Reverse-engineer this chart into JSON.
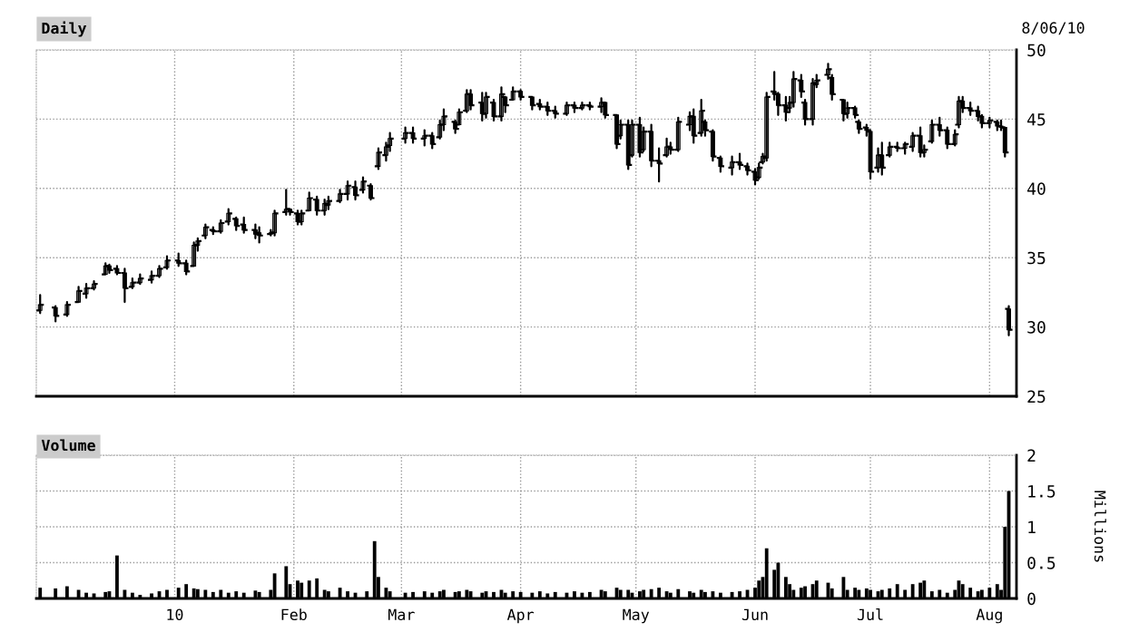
{
  "chart_data": [
    {
      "type": "candlestick",
      "title": "Daily",
      "annotations": [
        "8/06/10"
      ],
      "color": "#000000",
      "x": [
        "2009-11-27",
        "2009-12-01",
        "2009-12-04",
        "2009-12-07",
        "2009-12-09",
        "2009-12-11",
        "2009-12-14",
        "2009-12-15",
        "2009-12-17",
        "2009-12-19",
        "2009-12-21",
        "2009-12-23",
        "2009-12-26",
        "2009-12-28",
        "2009-12-30",
        "2010-01-02",
        "2010-01-04",
        "2010-01-06",
        "2010-01-07",
        "2010-01-09",
        "2010-01-11",
        "2010-01-13",
        "2010-01-15",
        "2010-01-17",
        "2010-01-19",
        "2010-01-22",
        "2010-01-23",
        "2010-01-26",
        "2010-01-27",
        "2010-01-30",
        "2010-01-31",
        "2010-02-02",
        "2010-02-03",
        "2010-02-05",
        "2010-02-07",
        "2010-02-09",
        "2010-02-10",
        "2010-02-13",
        "2010-02-15",
        "2010-02-17",
        "2010-02-19",
        "2010-02-21",
        "2010-02-23",
        "2010-02-25",
        "2010-02-26",
        "2010-03-02",
        "2010-03-04",
        "2010-03-07",
        "2010-03-09",
        "2010-03-11",
        "2010-03-12",
        "2010-03-15",
        "2010-03-16",
        "2010-03-18",
        "2010-03-19",
        "2010-03-22",
        "2010-03-23",
        "2010-03-25",
        "2010-03-27",
        "2010-03-28",
        "2010-03-30",
        "2010-04-01",
        "2010-04-04",
        "2010-04-06",
        "2010-04-08",
        "2010-04-10",
        "2010-04-13",
        "2010-04-15",
        "2010-04-17",
        "2010-04-19",
        "2010-04-22",
        "2010-04-23",
        "2010-04-26",
        "2010-04-27",
        "2010-04-29",
        "2010-04-30",
        "2010-05-02",
        "2010-05-03",
        "2010-05-05",
        "2010-05-07",
        "2010-05-09",
        "2010-05-10",
        "2010-05-12",
        "2010-05-15",
        "2010-05-16",
        "2010-05-18",
        "2010-05-19",
        "2010-05-21",
        "2010-05-23",
        "2010-05-26",
        "2010-05-28",
        "2010-05-30",
        "2010-06-01",
        "2010-06-02",
        "2010-06-03",
        "2010-06-04",
        "2010-06-06",
        "2010-06-07",
        "2010-06-09",
        "2010-06-10",
        "2010-06-11",
        "2010-06-13",
        "2010-06-14",
        "2010-06-16",
        "2010-06-17",
        "2010-06-20",
        "2010-06-21",
        "2010-06-24",
        "2010-06-25",
        "2010-06-27",
        "2010-06-28",
        "2010-06-30",
        "2010-07-01",
        "2010-07-03",
        "2010-07-04",
        "2010-07-06",
        "2010-07-08",
        "2010-07-10",
        "2010-07-12",
        "2010-07-14",
        "2010-07-15",
        "2010-07-17",
        "2010-07-19",
        "2010-07-21",
        "2010-07-23",
        "2010-07-24",
        "2010-07-25",
        "2010-07-27",
        "2010-07-29",
        "2010-07-30",
        "2010-08-01",
        "2010-08-03",
        "2010-08-04",
        "2010-08-05",
        "2010-08-06"
      ],
      "ohlc": [
        [
          31.2,
          32.3,
          31.0,
          31.6
        ],
        [
          31.4,
          31.5,
          30.4,
          30.8
        ],
        [
          30.9,
          31.8,
          30.8,
          31.6
        ],
        [
          31.8,
          32.9,
          31.8,
          32.6
        ],
        [
          32.4,
          33.1,
          32.1,
          32.8
        ],
        [
          32.8,
          33.3,
          32.7,
          33.1
        ],
        [
          33.8,
          34.6,
          33.8,
          34.4
        ],
        [
          34.4,
          34.5,
          33.9,
          34.1
        ],
        [
          34.2,
          34.4,
          33.8,
          33.9
        ],
        [
          33.9,
          34.2,
          31.8,
          32.8
        ],
        [
          32.9,
          33.5,
          32.8,
          33.2
        ],
        [
          33.2,
          33.8,
          33.1,
          33.5
        ],
        [
          33.4,
          34.0,
          33.2,
          33.7
        ],
        [
          33.7,
          34.4,
          33.6,
          34.2
        ],
        [
          34.3,
          35.1,
          34.2,
          34.8
        ],
        [
          34.8,
          35.3,
          34.4,
          34.6
        ],
        [
          34.6,
          34.8,
          33.8,
          34.0
        ],
        [
          34.4,
          36.1,
          34.4,
          35.9
        ],
        [
          35.9,
          36.4,
          35.5,
          36.2
        ],
        [
          36.6,
          37.4,
          36.4,
          37.2
        ],
        [
          37.0,
          37.2,
          36.7,
          36.9
        ],
        [
          36.9,
          37.7,
          36.8,
          37.5
        ],
        [
          37.6,
          38.5,
          37.4,
          38.2
        ],
        [
          37.8,
          37.9,
          37.0,
          37.3
        ],
        [
          37.4,
          37.9,
          36.8,
          37.0
        ],
        [
          37.0,
          37.4,
          36.4,
          36.7
        ],
        [
          36.8,
          37.2,
          36.1,
          36.6
        ],
        [
          36.7,
          37.0,
          36.6,
          36.8
        ],
        [
          36.8,
          38.4,
          36.6,
          38.2
        ],
        [
          38.3,
          39.9,
          38.1,
          38.5
        ],
        [
          38.5,
          38.5,
          38.1,
          38.3
        ],
        [
          38.2,
          38.4,
          37.4,
          37.6
        ],
        [
          37.6,
          38.4,
          37.4,
          38.2
        ],
        [
          38.4,
          39.7,
          38.4,
          39.3
        ],
        [
          39.2,
          39.4,
          38.1,
          38.4
        ],
        [
          38.4,
          39.2,
          38.1,
          38.9
        ],
        [
          38.8,
          39.4,
          38.5,
          39.1
        ],
        [
          39.1,
          39.9,
          39.0,
          39.6
        ],
        [
          39.6,
          40.5,
          39.2,
          40.2
        ],
        [
          40.1,
          40.5,
          39.2,
          39.5
        ],
        [
          39.9,
          40.8,
          39.7,
          40.5
        ],
        [
          40.2,
          40.3,
          39.2,
          39.3
        ],
        [
          41.6,
          42.9,
          41.4,
          42.6
        ],
        [
          42.4,
          43.3,
          42.0,
          43.0
        ],
        [
          43.1,
          44.0,
          42.7,
          43.6
        ],
        [
          43.6,
          44.4,
          43.3,
          44.0
        ],
        [
          44.0,
          44.4,
          43.3,
          43.6
        ],
        [
          43.6,
          44.2,
          43.1,
          43.8
        ],
        [
          43.8,
          44.0,
          42.9,
          43.2
        ],
        [
          43.7,
          44.9,
          43.6,
          44.6
        ],
        [
          44.6,
          45.7,
          44.2,
          45.2
        ],
        [
          44.8,
          44.9,
          44.0,
          44.3
        ],
        [
          44.6,
          45.7,
          44.6,
          45.5
        ],
        [
          45.6,
          47.1,
          45.5,
          46.8
        ],
        [
          46.8,
          47.1,
          45.7,
          46.0
        ],
        [
          46.2,
          46.9,
          44.9,
          45.4
        ],
        [
          45.4,
          46.9,
          45.1,
          46.6
        ],
        [
          46.2,
          46.4,
          44.9,
          45.2
        ],
        [
          45.2,
          47.3,
          44.9,
          46.8
        ],
        [
          46.6,
          46.6,
          45.5,
          46.0
        ],
        [
          46.4,
          47.3,
          46.4,
          47.0
        ],
        [
          47.0,
          47.1,
          46.4,
          46.6
        ],
        [
          46.6,
          46.6,
          45.7,
          46.0
        ],
        [
          46.1,
          46.4,
          45.7,
          45.9
        ],
        [
          45.9,
          46.2,
          45.3,
          45.6
        ],
        [
          45.6,
          45.9,
          45.1,
          45.4
        ],
        [
          45.4,
          46.2,
          45.3,
          46.0
        ],
        [
          46.0,
          46.2,
          45.5,
          45.8
        ],
        [
          45.8,
          46.2,
          45.7,
          46.0
        ],
        [
          46.0,
          46.2,
          45.7,
          45.9
        ],
        [
          45.9,
          46.5,
          45.5,
          46.2
        ],
        [
          46.2,
          46.2,
          45.1,
          45.3
        ],
        [
          45.3,
          45.3,
          42.9,
          43.2
        ],
        [
          43.8,
          44.9,
          43.6,
          44.6
        ],
        [
          44.6,
          44.9,
          41.4,
          41.7
        ],
        [
          42.4,
          44.9,
          42.3,
          44.6
        ],
        [
          44.6,
          45.1,
          42.3,
          42.6
        ],
        [
          42.8,
          44.4,
          42.7,
          44.1
        ],
        [
          44.1,
          44.6,
          41.6,
          42.0
        ],
        [
          42.0,
          42.9,
          40.5,
          41.8
        ],
        [
          42.4,
          43.6,
          42.3,
          43.0
        ],
        [
          43.0,
          43.3,
          42.5,
          42.8
        ],
        [
          42.8,
          45.1,
          42.7,
          44.8
        ],
        [
          44.6,
          45.5,
          44.2,
          45.2
        ],
        [
          45.2,
          45.7,
          43.3,
          43.8
        ],
        [
          44.0,
          46.4,
          43.8,
          45.6
        ],
        [
          44.8,
          44.9,
          43.8,
          44.2
        ],
        [
          44.1,
          44.2,
          42.0,
          42.3
        ],
        [
          42.2,
          42.3,
          41.2,
          41.6
        ],
        [
          41.5,
          42.3,
          41.0,
          41.9
        ],
        [
          41.9,
          42.5,
          41.4,
          41.7
        ],
        [
          41.6,
          41.8,
          41.0,
          41.3
        ],
        [
          41.2,
          41.4,
          40.3,
          40.6
        ],
        [
          40.8,
          41.8,
          40.7,
          41.5
        ],
        [
          41.9,
          42.5,
          41.8,
          42.3
        ],
        [
          42.2,
          46.9,
          42.0,
          46.6
        ],
        [
          47.0,
          48.4,
          46.4,
          46.8
        ],
        [
          46.8,
          46.9,
          45.3,
          46.0
        ],
        [
          46.0,
          46.6,
          44.9,
          45.5
        ],
        [
          45.8,
          46.6,
          45.5,
          46.2
        ],
        [
          46.2,
          48.4,
          45.9,
          47.9
        ],
        [
          47.8,
          48.2,
          46.6,
          47.0
        ],
        [
          46.2,
          46.4,
          44.6,
          45.0
        ],
        [
          45.0,
          47.9,
          44.6,
          47.6
        ],
        [
          47.5,
          48.2,
          47.3,
          47.8
        ],
        [
          48.2,
          49.0,
          47.9,
          48.6
        ],
        [
          48.0,
          48.2,
          46.4,
          46.8
        ],
        [
          46.4,
          46.4,
          44.9,
          45.4
        ],
        [
          45.4,
          46.2,
          45.1,
          45.8
        ],
        [
          45.8,
          45.9,
          45.1,
          45.3
        ],
        [
          44.8,
          44.9,
          44.0,
          44.3
        ],
        [
          44.4,
          44.6,
          43.8,
          44.2
        ],
        [
          44.1,
          44.2,
          40.7,
          41.2
        ],
        [
          41.5,
          42.9,
          41.2,
          42.4
        ],
        [
          42.4,
          43.3,
          41.0,
          41.5
        ],
        [
          42.4,
          43.3,
          42.3,
          43.0
        ],
        [
          43.0,
          43.3,
          42.7,
          42.9
        ],
        [
          42.9,
          43.3,
          42.5,
          43.2
        ],
        [
          43.0,
          44.0,
          42.7,
          43.8
        ],
        [
          43.8,
          44.4,
          42.3,
          42.6
        ],
        [
          42.6,
          43.1,
          42.3,
          42.8
        ],
        [
          43.4,
          44.9,
          43.3,
          44.6
        ],
        [
          44.6,
          45.1,
          43.8,
          44.2
        ],
        [
          44.2,
          44.4,
          42.9,
          43.2
        ],
        [
          43.2,
          44.2,
          43.1,
          43.9
        ],
        [
          44.6,
          46.6,
          44.4,
          46.3
        ],
        [
          46.3,
          46.6,
          45.5,
          45.8
        ],
        [
          45.8,
          46.2,
          45.3,
          45.6
        ],
        [
          45.6,
          45.9,
          44.9,
          45.2
        ],
        [
          45.2,
          45.3,
          44.4,
          44.7
        ],
        [
          44.7,
          45.1,
          44.4,
          44.9
        ],
        [
          44.8,
          44.9,
          44.2,
          44.5
        ],
        [
          44.5,
          44.9,
          44.2,
          44.4
        ],
        [
          44.4,
          44.4,
          42.3,
          42.6
        ],
        [
          31.3,
          31.5,
          29.4,
          29.8
        ]
      ],
      "xlim": [
        "2009-11-26",
        "2010-08-08"
      ],
      "xticks": [
        {
          "value": "2010-01-01",
          "label": null
        },
        {
          "value": "2010-02-01",
          "label": null
        },
        {
          "value": "2010-03-01",
          "label": null
        },
        {
          "value": "2010-04-01",
          "label": null
        },
        {
          "value": "2010-05-01",
          "label": null
        },
        {
          "value": "2010-06-01",
          "label": null
        },
        {
          "value": "2010-07-01",
          "label": null
        },
        {
          "value": "2010-08-01",
          "label": null
        }
      ],
      "ylim": [
        25,
        50
      ],
      "yticks": [
        25,
        30,
        35,
        40,
        45,
        50
      ],
      "tick_labels": "y",
      "grid": true
    },
    {
      "type": "bar",
      "title": "Volume",
      "ylabel": "Millions",
      "color": "#000000",
      "x": [
        "2009-11-27",
        "2009-12-01",
        "2009-12-04",
        "2009-12-07",
        "2009-12-09",
        "2009-12-11",
        "2009-12-14",
        "2009-12-15",
        "2009-12-17",
        "2009-12-19",
        "2009-12-21",
        "2009-12-23",
        "2009-12-26",
        "2009-12-28",
        "2009-12-30",
        "2010-01-02",
        "2010-01-04",
        "2010-01-06",
        "2010-01-07",
        "2010-01-09",
        "2010-01-11",
        "2010-01-13",
        "2010-01-15",
        "2010-01-17",
        "2010-01-19",
        "2010-01-22",
        "2010-01-23",
        "2010-01-26",
        "2010-01-27",
        "2010-01-30",
        "2010-01-31",
        "2010-02-02",
        "2010-02-03",
        "2010-02-05",
        "2010-02-07",
        "2010-02-09",
        "2010-02-10",
        "2010-02-13",
        "2010-02-15",
        "2010-02-17",
        "2010-02-20",
        "2010-02-22",
        "2010-02-23",
        "2010-02-25",
        "2010-02-26",
        "2010-03-02",
        "2010-03-04",
        "2010-03-07",
        "2010-03-09",
        "2010-03-11",
        "2010-03-12",
        "2010-03-15",
        "2010-03-16",
        "2010-03-18",
        "2010-03-19",
        "2010-03-22",
        "2010-03-23",
        "2010-03-25",
        "2010-03-27",
        "2010-03-28",
        "2010-03-30",
        "2010-04-01",
        "2010-04-04",
        "2010-04-06",
        "2010-04-08",
        "2010-04-10",
        "2010-04-13",
        "2010-04-15",
        "2010-04-17",
        "2010-04-19",
        "2010-04-22",
        "2010-04-23",
        "2010-04-26",
        "2010-04-27",
        "2010-04-29",
        "2010-04-30",
        "2010-05-02",
        "2010-05-03",
        "2010-05-05",
        "2010-05-07",
        "2010-05-09",
        "2010-05-10",
        "2010-05-12",
        "2010-05-15",
        "2010-05-16",
        "2010-05-18",
        "2010-05-19",
        "2010-05-21",
        "2010-05-23",
        "2010-05-26",
        "2010-05-28",
        "2010-05-30",
        "2010-06-01",
        "2010-06-02",
        "2010-06-03",
        "2010-06-04",
        "2010-06-06",
        "2010-06-07",
        "2010-06-09",
        "2010-06-10",
        "2010-06-11",
        "2010-06-13",
        "2010-06-14",
        "2010-06-16",
        "2010-06-17",
        "2010-06-20",
        "2010-06-21",
        "2010-06-24",
        "2010-06-25",
        "2010-06-27",
        "2010-06-28",
        "2010-06-30",
        "2010-07-01",
        "2010-07-03",
        "2010-07-04",
        "2010-07-06",
        "2010-07-08",
        "2010-07-10",
        "2010-07-12",
        "2010-07-14",
        "2010-07-15",
        "2010-07-17",
        "2010-07-19",
        "2010-07-21",
        "2010-07-23",
        "2010-07-24",
        "2010-07-25",
        "2010-07-27",
        "2010-07-29",
        "2010-07-30",
        "2010-08-01",
        "2010-08-03",
        "2010-08-04",
        "2010-08-05",
        "2010-08-06"
      ],
      "values": [
        0.15,
        0.14,
        0.17,
        0.12,
        0.08,
        0.07,
        0.09,
        0.1,
        0.6,
        0.12,
        0.08,
        0.05,
        0.07,
        0.1,
        0.12,
        0.15,
        0.2,
        0.14,
        0.13,
        0.12,
        0.09,
        0.12,
        0.08,
        0.1,
        0.08,
        0.11,
        0.09,
        0.12,
        0.35,
        0.45,
        0.2,
        0.25,
        0.22,
        0.25,
        0.28,
        0.12,
        0.1,
        0.15,
        0.1,
        0.08,
        0.1,
        0.8,
        0.3,
        0.15,
        0.1,
        0.08,
        0.09,
        0.1,
        0.08,
        0.1,
        0.12,
        0.09,
        0.1,
        0.12,
        0.1,
        0.08,
        0.1,
        0.09,
        0.12,
        0.08,
        0.1,
        0.09,
        0.08,
        0.1,
        0.07,
        0.09,
        0.08,
        0.1,
        0.08,
        0.09,
        0.12,
        0.1,
        0.15,
        0.12,
        0.12,
        0.08,
        0.1,
        0.12,
        0.13,
        0.15,
        0.1,
        0.08,
        0.13,
        0.1,
        0.08,
        0.12,
        0.09,
        0.1,
        0.08,
        0.09,
        0.1,
        0.12,
        0.15,
        0.25,
        0.3,
        0.7,
        0.4,
        0.5,
        0.3,
        0.2,
        0.12,
        0.15,
        0.17,
        0.2,
        0.25,
        0.22,
        0.14,
        0.3,
        0.12,
        0.15,
        0.12,
        0.14,
        0.12,
        0.1,
        0.12,
        0.14,
        0.2,
        0.12,
        0.2,
        0.22,
        0.25,
        0.1,
        0.12,
        0.08,
        0.12,
        0.25,
        0.2,
        0.15,
        0.1,
        0.12,
        0.15,
        0.2,
        0.12,
        1.0,
        1.5
      ],
      "xlim": [
        "2009-11-26",
        "2010-08-08"
      ],
      "xticks": [
        {
          "value": "2010-01-01",
          "label": "10"
        },
        {
          "value": "2010-02-01",
          "label": "Feb"
        },
        {
          "value": "2010-03-01",
          "label": "Mar"
        },
        {
          "value": "2010-04-01",
          "label": "Apr"
        },
        {
          "value": "2010-05-01",
          "label": "May"
        },
        {
          "value": "2010-06-01",
          "label": "Jun"
        },
        {
          "value": "2010-07-01",
          "label": "Jul"
        },
        {
          "value": "2010-08-01",
          "label": "Aug"
        }
      ],
      "ylim": [
        0,
        2
      ],
      "yticks": [
        0,
        0.5,
        1,
        1.5,
        2
      ],
      "grid": true
    }
  ]
}
